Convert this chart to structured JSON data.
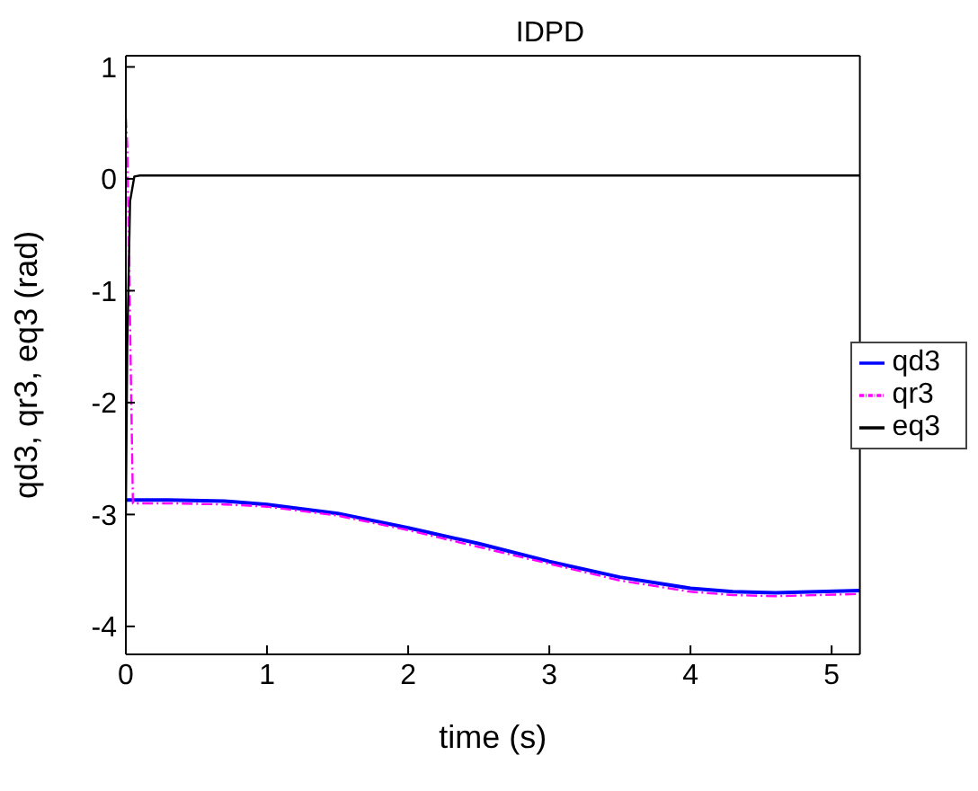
{
  "chart_data": {
    "type": "line",
    "title": "IDPD",
    "xlabel": "time (s)",
    "ylabel": "qd3, qr3, eq3 (rad)",
    "xlim": [
      0,
      5.2
    ],
    "xticks": [
      0,
      1,
      2,
      3,
      4,
      5
    ],
    "ylim": [
      -4.25,
      1.1
    ],
    "yticks": [
      -4,
      -3,
      -2,
      -1,
      0,
      1
    ],
    "legend": "right",
    "marker": "none",
    "series": [
      {
        "name": "qd3",
        "color": "#0000ff",
        "line_style": "solid",
        "x": [
          0,
          0.05,
          0.3,
          0.7,
          1,
          1.5,
          2,
          2.5,
          3,
          3.5,
          4,
          4.3,
          4.6,
          4.9,
          5.2
        ],
        "values": [
          -2.87,
          -2.87,
          -2.87,
          -2.88,
          -2.91,
          -2.99,
          -3.12,
          -3.26,
          -3.42,
          -3.56,
          -3.66,
          -3.69,
          -3.7,
          -3.69,
          -3.68
        ]
      },
      {
        "name": "qr3",
        "color": "#ff00ff",
        "line_style": "dashdot",
        "x": [
          0,
          0.01,
          0.05,
          0.3,
          0.7,
          1,
          1.5,
          2,
          2.5,
          3,
          3.5,
          4,
          4.3,
          4.6,
          4.9,
          5.2
        ],
        "values": [
          0.55,
          0.3,
          -2.9,
          -2.9,
          -2.91,
          -2.93,
          -3.01,
          -3.14,
          -3.29,
          -3.44,
          -3.59,
          -3.69,
          -3.72,
          -3.73,
          -3.72,
          -3.71
        ]
      },
      {
        "name": "eq3",
        "color": "#000000",
        "line_style": "solid",
        "x": [
          0,
          0.01,
          0.03,
          0.06,
          0.1,
          1,
          2,
          3,
          4,
          5.2
        ],
        "values": [
          -3.0,
          -1.5,
          -0.2,
          0.02,
          0.03,
          0.03,
          0.03,
          0.03,
          0.03,
          0.03
        ]
      }
    ]
  }
}
